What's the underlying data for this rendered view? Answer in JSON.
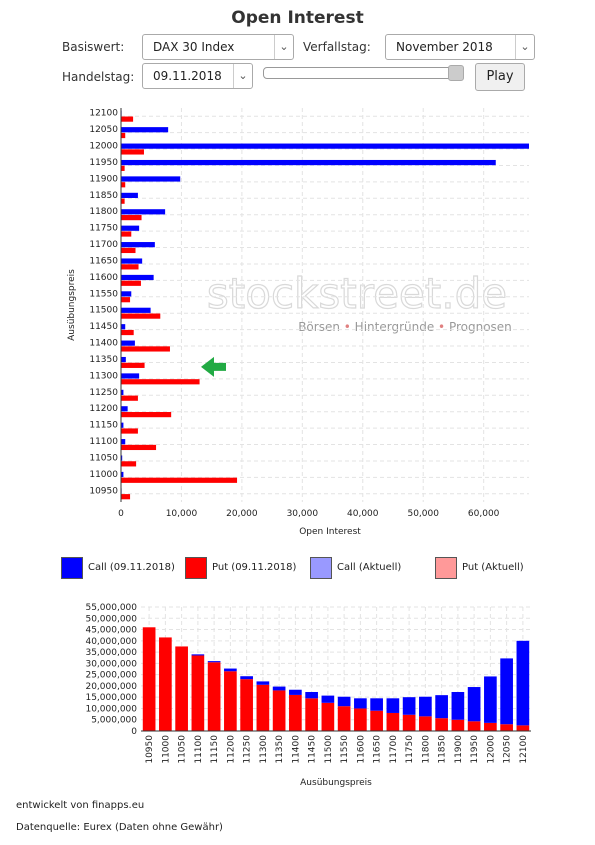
{
  "page": {
    "title": "Open Interest"
  },
  "controls": {
    "basiswert_label": "Basiswert:",
    "basiswert_value": "DAX 30 Index",
    "verfallstag_label": "Verfallstag:",
    "verfallstag_value": "November 2018",
    "handelstag_label": "Handelstag:",
    "handelstag_value": "09.11.2018",
    "play_label": "Play",
    "dropdown_icon": "chevron-down-icon"
  },
  "watermark": {
    "brand": "stockstreet.de",
    "tagline_parts": [
      "Börsen",
      "Hintergründe",
      "Prognosen"
    ]
  },
  "legend": [
    {
      "label": "Call (09.11.2018)",
      "color": "#0000ff"
    },
    {
      "label": "Put (09.11.2018)",
      "color": "#ff0000"
    },
    {
      "label": "Call (Aktuell)",
      "color": "#9999ff"
    },
    {
      "label": "Put (Aktuell)",
      "color": "#ff9999"
    }
  ],
  "chart_data": [
    {
      "type": "bar",
      "orientation": "horizontal",
      "xlabel": "Open Interest",
      "ylabel": "Ausübungspreis",
      "xlim": [
        0,
        67500
      ],
      "xticks": [
        0,
        10000,
        20000,
        30000,
        40000,
        50000,
        60000
      ],
      "xtick_labels": [
        "0",
        "10,000",
        "20,000",
        "30,000",
        "40,000",
        "50,000",
        "60,000"
      ],
      "grid": true,
      "categories": [
        "12100",
        "12050",
        "12000",
        "11950",
        "11900",
        "11850",
        "11800",
        "11750",
        "11700",
        "11650",
        "11600",
        "11550",
        "11500",
        "11450",
        "11400",
        "11350",
        "11300",
        "11250",
        "11200",
        "11150",
        "11100",
        "11050",
        "11000",
        "10950"
      ],
      "series": [
        {
          "name": "Call (09.11.2018)",
          "color": "#0000ff",
          "values": [
            100,
            7800,
            67500,
            62000,
            9800,
            2800,
            7300,
            3000,
            5600,
            3500,
            5400,
            1700,
            4900,
            700,
            2300,
            800,
            3000,
            400,
            1100,
            400,
            700,
            200,
            400,
            100
          ]
        },
        {
          "name": "Put (09.11.2018)",
          "color": "#ff0000",
          "values": [
            2000,
            700,
            3800,
            600,
            700,
            600,
            3400,
            1700,
            2400,
            2900,
            3300,
            1500,
            6500,
            2100,
            8100,
            3900,
            13000,
            2800,
            8300,
            2800,
            5800,
            2500,
            19200,
            1500
          ]
        }
      ],
      "highlight_marker": {
        "category": "11300",
        "color": "#22aa44",
        "icon": "arrow-left-icon"
      }
    },
    {
      "type": "bar",
      "stacked": true,
      "xlabel": "Ausübungspreis",
      "ylabel": "",
      "ylim": [
        0,
        55000000
      ],
      "yticks": [
        0,
        5000000,
        10000000,
        15000000,
        20000000,
        25000000,
        30000000,
        35000000,
        40000000,
        45000000,
        50000000,
        55000000
      ],
      "ytick_labels": [
        "0",
        "5,000,000",
        "10,000,000",
        "15,000,000",
        "20,000,000",
        "25,000,000",
        "30,000,000",
        "35,000,000",
        "40,000,000",
        "45,000,000",
        "50,000,000",
        "55,000,000"
      ],
      "grid": true,
      "categories": [
        "10950",
        "11000",
        "11050",
        "11100",
        "11150",
        "11200",
        "11250",
        "11300",
        "11350",
        "11400",
        "11450",
        "11500",
        "11550",
        "11600",
        "11650",
        "11700",
        "11750",
        "11800",
        "11850",
        "11900",
        "11950",
        "12000",
        "12050",
        "12100"
      ],
      "series": [
        {
          "name": "Put",
          "color": "#ff0000",
          "values": [
            46000000,
            41500000,
            37500000,
            33500000,
            30500000,
            26500000,
            23000000,
            20500000,
            18000000,
            16000000,
            14500000,
            12500000,
            11000000,
            10000000,
            9000000,
            8000000,
            7200000,
            6500000,
            5700000,
            5000000,
            4300000,
            3600000,
            3000000,
            2500000
          ]
        },
        {
          "name": "Call",
          "color": "#0000ff",
          "values": [
            0,
            0,
            0,
            500000,
            500000,
            1200000,
            1300000,
            1500000,
            1700000,
            2300000,
            2800000,
            3200000,
            4200000,
            4500000,
            5500000,
            6500000,
            7800000,
            8700000,
            10200000,
            12300000,
            15200000,
            20600000,
            29200000,
            37500000
          ]
        }
      ]
    }
  ],
  "footer": {
    "developed_by": "entwickelt von finapps.eu",
    "source": "Datenquelle: Eurex (Daten ohne Gewähr)"
  }
}
